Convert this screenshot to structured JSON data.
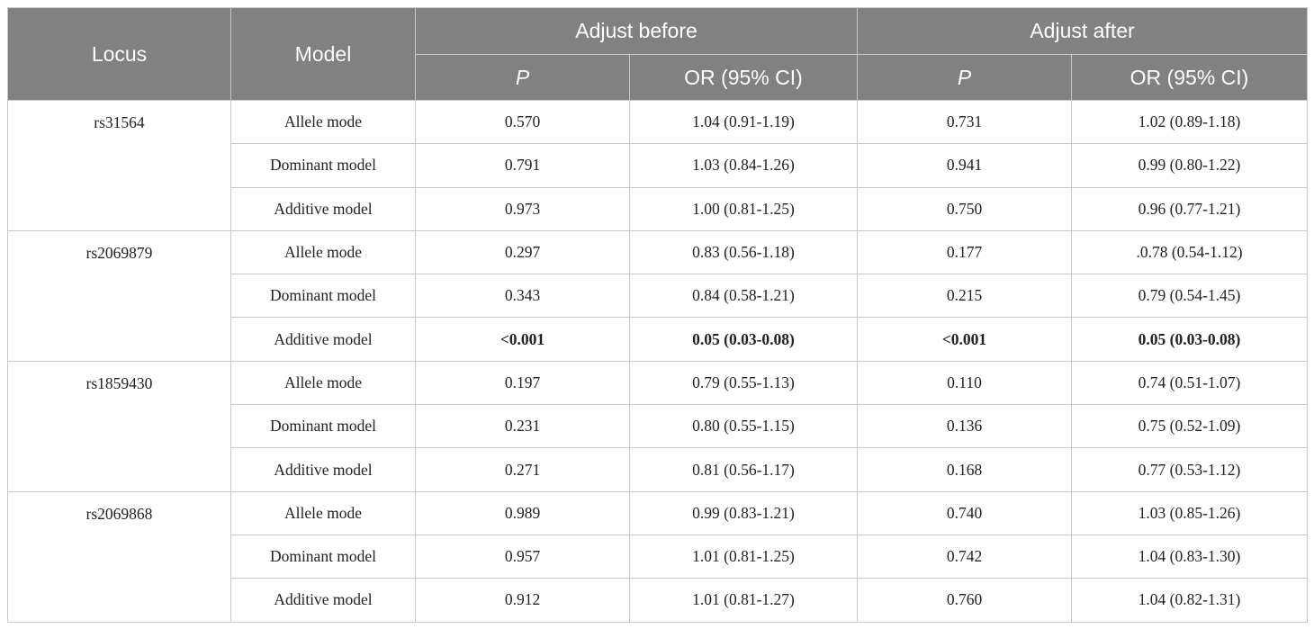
{
  "header": {
    "locus": "Locus",
    "model": "Model",
    "groups": [
      "Adjust before",
      "Adjust after"
    ],
    "subheaders": [
      "P",
      "OR (95% CI)",
      "P",
      "OR (95% CI)"
    ]
  },
  "loci": [
    {
      "locus": "rs31564",
      "rows": [
        {
          "cells": [
            "Allele mode",
            "0.570",
            "1.04 (0.91-1.19)",
            "0.731",
            "1.02 (0.89-1.18)"
          ]
        },
        {
          "cells": [
            "Dominant model",
            "0.791",
            "1.03 (0.84-1.26)",
            "0.941",
            "0.99 (0.80-1.22)"
          ]
        },
        {
          "cells": [
            "Additive model",
            "0.973",
            "1.00 (0.81-1.25)",
            "0.750",
            "0.96 (0.77-1.21)"
          ]
        }
      ]
    },
    {
      "locus": "rs2069879",
      "rows": [
        {
          "cells": [
            "Allele mode",
            "0.297",
            "0.83 (0.56-1.18)",
            "0.177",
            ".0.78 (0.54-1.12)"
          ]
        },
        {
          "cells": [
            "Dominant model",
            "0.343",
            "0.84 (0.58-1.21)",
            "0.215",
            "0.79 (0.54-1.45)"
          ]
        },
        {
          "cells": [
            "Additive model",
            "<0.001",
            "0.05 (0.03-0.08)",
            "<0.001",
            "0.05 (0.03-0.08)"
          ],
          "bold": true
        }
      ]
    },
    {
      "locus": "rs1859430",
      "rows": [
        {
          "cells": [
            "Allele mode",
            "0.197",
            "0.79 (0.55-1.13)",
            "0.110",
            "0.74 (0.51-1.07)"
          ]
        },
        {
          "cells": [
            "Dominant model",
            "0.231",
            "0.80 (0.55-1.15)",
            "0.136",
            "0.75 (0.52-1.09)"
          ]
        },
        {
          "cells": [
            "Additive model",
            "0.271",
            "0.81 (0.56-1.17)",
            "0.168",
            "0.77 (0.53-1.12)"
          ]
        }
      ]
    },
    {
      "locus": "rs2069868",
      "rows": [
        {
          "cells": [
            "Allele mode",
            "0.989",
            "0.99 (0.83-1.21)",
            "0.740",
            "1.03 (0.85-1.26)"
          ]
        },
        {
          "cells": [
            "Dominant model",
            "0.957",
            "1.01 (0.81-1.25)",
            "0.742",
            "1.04 (0.83-1.30)"
          ]
        },
        {
          "cells": [
            "Additive model",
            "0.912",
            "1.01 (0.81-1.27)",
            "0.760",
            "1.04 (0.82-1.31)"
          ]
        }
      ]
    }
  ]
}
